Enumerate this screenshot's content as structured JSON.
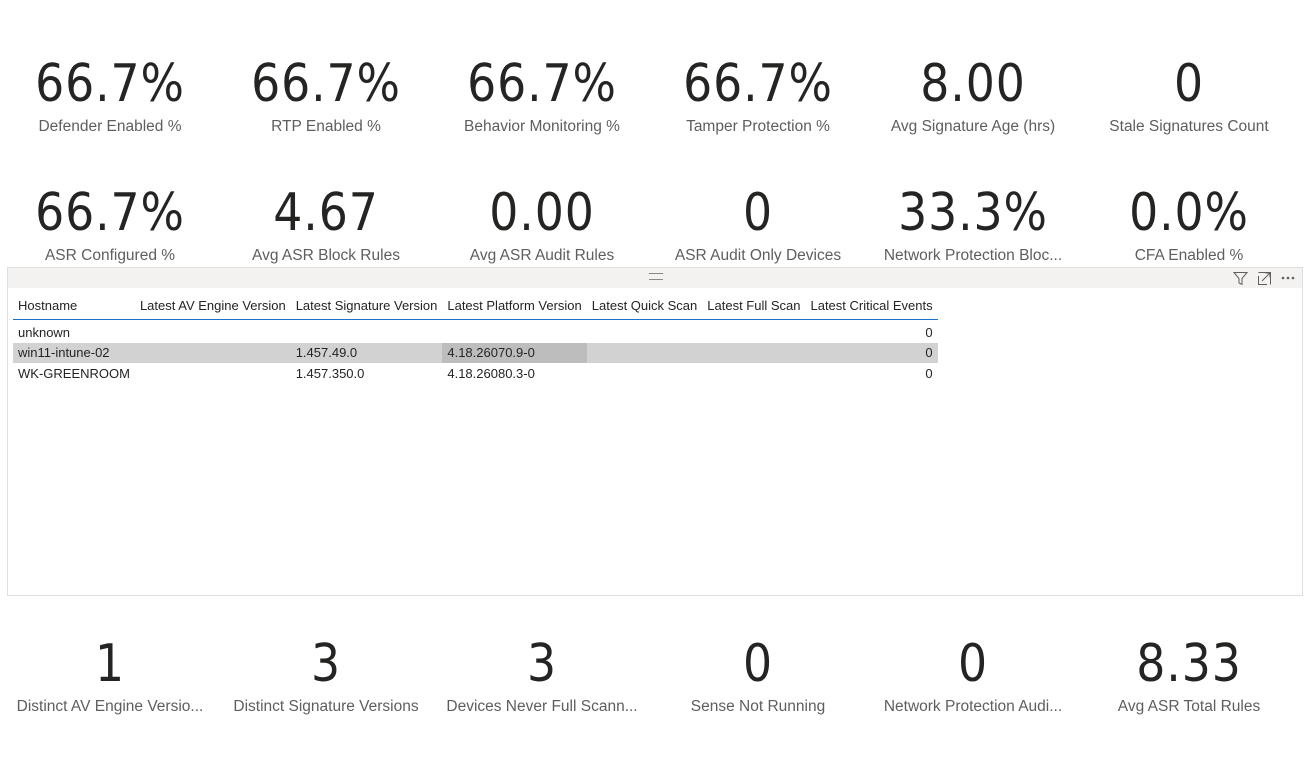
{
  "kpi_row_1": [
    {
      "value": "66.7%",
      "label": "Defender Enabled %"
    },
    {
      "value": "66.7%",
      "label": "RTP Enabled %"
    },
    {
      "value": "66.7%",
      "label": "Behavior Monitoring %"
    },
    {
      "value": "66.7%",
      "label": "Tamper Protection %"
    },
    {
      "value": "8.00",
      "label": "Avg Signature Age (hrs)"
    },
    {
      "value": "0",
      "label": "Stale Signatures Count"
    }
  ],
  "kpi_row_2": [
    {
      "value": "66.7%",
      "label": "ASR Configured %"
    },
    {
      "value": "4.67",
      "label": "Avg ASR Block Rules"
    },
    {
      "value": "0.00",
      "label": "Avg ASR Audit Rules"
    },
    {
      "value": "0",
      "label": "ASR Audit Only Devices"
    },
    {
      "value": "33.3%",
      "label": "Network Protection Bloc..."
    },
    {
      "value": "0.0%",
      "label": "CFA Enabled %"
    }
  ],
  "kpi_row_3": [
    {
      "value": "1",
      "label": "Distinct AV Engine Versio..."
    },
    {
      "value": "3",
      "label": "Distinct Signature Versions"
    },
    {
      "value": "3",
      "label": "Devices Never Full Scann..."
    },
    {
      "value": "0",
      "label": "Sense Not Running"
    },
    {
      "value": "0",
      "label": "Network Protection Audi..."
    },
    {
      "value": "8.33",
      "label": "Avg ASR Total Rules"
    }
  ],
  "table": {
    "columns": [
      "Hostname",
      "Latest AV Engine Version",
      "Latest Signature Version",
      "Latest Platform Version",
      "Latest Quick Scan",
      "Latest Full Scan",
      "Latest Critical Events"
    ],
    "rows": [
      [
        "unknown",
        "",
        "",
        "",
        "",
        "",
        "0"
      ],
      [
        "win11-intune-02",
        "",
        "1.457.49.0",
        "4.18.26070.9-0",
        "",
        "",
        "0"
      ],
      [
        "WK-GREENROOM",
        "",
        "1.457.350.0",
        "4.18.26080.3-0",
        "",
        "",
        "0"
      ]
    ],
    "header_icons": [
      "filter-icon",
      "focus-mode-icon",
      "more-options-icon"
    ]
  },
  "colors": {
    "kpi_value": "#252423",
    "kpi_label": "#605e5c",
    "header_underline": "#1a73c8",
    "row_highlight": "#d2d2d2"
  }
}
